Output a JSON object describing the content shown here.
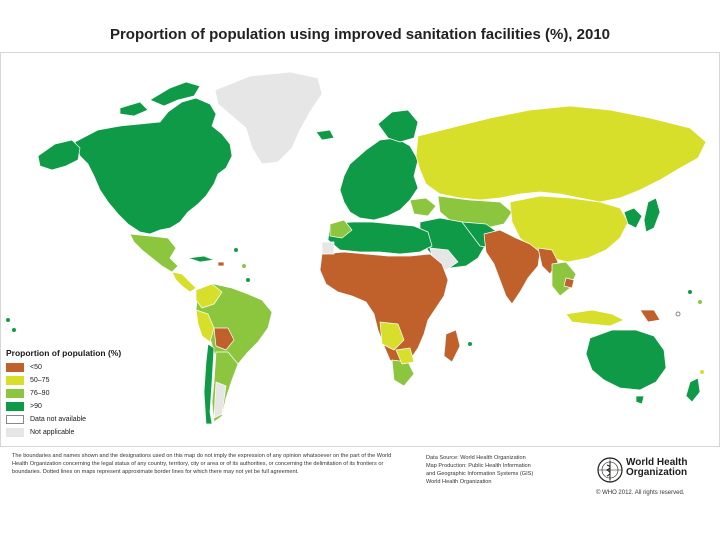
{
  "title": "Proportion of population using improved sanitation facilities (%), 2010",
  "legend": {
    "title": "Proportion of population (%)",
    "items": [
      {
        "label": "<50",
        "color": "#c0612b"
      },
      {
        "label": "50–75",
        "color": "#d7df2a"
      },
      {
        "label": "76–90",
        "color": "#8cc63f"
      },
      {
        "label": ">90",
        "color": "#0f9a48"
      },
      {
        "label": "Data not available",
        "color": "#ffffff"
      },
      {
        "label": "Not applicable",
        "color": "#e6e6e6"
      }
    ]
  },
  "disclaimer": "The boundaries and names shown and the designations used on this map do not imply the expression of any opinion whatsoever on the part of the World Health Organization concerning the legal status of any country, territory, city or area or of its authorities, or concerning the delimitation of its frontiers or boundaries. Dotted lines on maps represent approximate border lines for which there may not yet be full agreement.",
  "credits": {
    "line1": "Data Source: World Health Organization",
    "line2": "Map Production: Public Health Information",
    "line3": "and Geographic Information Systems (GIS)",
    "line4": "World Health Organization"
  },
  "logo": {
    "line1": "World Health",
    "line2": "Organization"
  },
  "copyright": "© WHO 2012. All rights reserved."
}
